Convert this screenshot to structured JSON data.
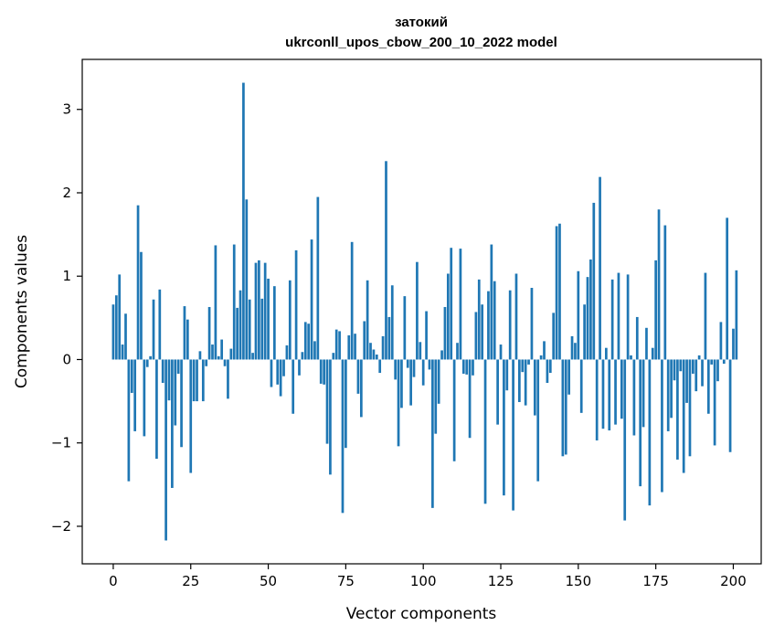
{
  "chart_data": {
    "type": "bar",
    "title_line1": "затокий",
    "title_line2": "ukrconll_upos_cbow_200_10_2022 model",
    "xlabel": "Vector components",
    "ylabel": "Components values",
    "xlim": [
      -10,
      209
    ],
    "ylim": [
      -2.45,
      3.6
    ],
    "xticks": [
      0,
      25,
      50,
      75,
      100,
      125,
      150,
      175,
      200
    ],
    "xtick_labels": [
      "0",
      "25",
      "50",
      "75",
      "100",
      "125",
      "150",
      "175",
      "200"
    ],
    "yticks": [
      -2,
      -1,
      0,
      1,
      2,
      3
    ],
    "ytick_labels": [
      "−2",
      "−1",
      "0",
      "1",
      "2",
      "3"
    ],
    "bar_color": "#1f77b4",
    "grid": false,
    "values": [
      0.66,
      0.77,
      1.02,
      0.18,
      0.55,
      -1.46,
      -0.4,
      -0.86,
      1.85,
      1.29,
      -0.92,
      -0.09,
      0.04,
      0.72,
      -1.19,
      0.84,
      -0.28,
      -2.17,
      -0.49,
      -1.54,
      -0.79,
      -0.17,
      -1.05,
      0.64,
      0.48,
      -1.36,
      -0.5,
      -0.5,
      0.1,
      -0.5,
      -0.08,
      0.63,
      0.18,
      1.37,
      0.04,
      0.24,
      -0.08,
      -0.47,
      0.13,
      1.38,
      0.62,
      0.83,
      3.32,
      1.92,
      0.72,
      0.08,
      1.16,
      1.19,
      0.73,
      1.16,
      0.97,
      -0.33,
      0.88,
      -0.3,
      -0.44,
      -0.2,
      0.17,
      0.95,
      -0.65,
      1.31,
      -0.19,
      0.09,
      0.45,
      0.43,
      1.44,
      0.22,
      1.95,
      -0.29,
      -0.3,
      -1.01,
      -1.38,
      0.08,
      0.36,
      0.34,
      -1.84,
      -1.06,
      0.29,
      1.41,
      0.31,
      -0.41,
      -0.69,
      0.46,
      0.95,
      0.2,
      0.12,
      0.06,
      -0.16,
      0.28,
      2.38,
      0.51,
      0.89,
      -0.24,
      -1.04,
      -0.58,
      0.76,
      -0.1,
      -0.55,
      -0.21,
      1.17,
      0.21,
      -0.31,
      0.58,
      -0.12,
      -1.78,
      -0.89,
      -0.53,
      0.11,
      0.63,
      1.03,
      1.34,
      -1.22,
      0.2,
      1.33,
      -0.17,
      -0.18,
      -0.94,
      -0.19,
      0.57,
      0.96,
      0.66,
      -1.73,
      0.82,
      1.38,
      0.94,
      -0.78,
      0.18,
      -1.63,
      -0.37,
      0.83,
      -1.81,
      1.03,
      -0.51,
      -0.15,
      -0.55,
      -0.06,
      0.86,
      -0.67,
      -1.46,
      0.05,
      0.22,
      -0.28,
      -0.16,
      0.56,
      1.6,
      1.63,
      -1.16,
      -1.14,
      -0.42,
      0.28,
      0.2,
      1.06,
      -0.64,
      0.66,
      0.99,
      1.2,
      1.88,
      -0.97,
      2.19,
      -0.83,
      0.14,
      -0.85,
      0.96,
      -0.78,
      1.04,
      -0.71,
      -1.93,
      1.02,
      0.05,
      -0.91,
      0.51,
      -1.52,
      -0.81,
      0.38,
      -1.75,
      0.14,
      1.19,
      1.8,
      -1.59,
      1.61,
      -0.86,
      -0.7,
      -0.25,
      -1.2,
      -0.14,
      -1.36,
      -0.52,
      -1.16,
      -0.17,
      -0.38,
      0.05,
      -0.32,
      1.04,
      -0.65,
      -0.06,
      -1.03,
      -0.26,
      0.45,
      -0.05,
      1.7,
      -1.11,
      0.37,
      1.07
    ]
  }
}
